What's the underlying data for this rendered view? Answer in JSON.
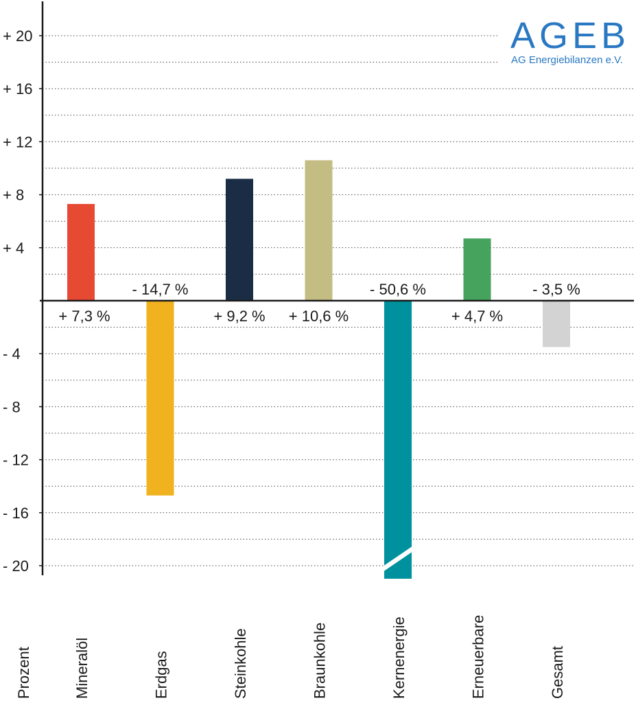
{
  "logo": {
    "title": "AGEB",
    "subtitle": "AG Energiebilanzen e.V.",
    "color": "#2a78c2"
  },
  "chart_data": {
    "type": "bar",
    "ylabel": "Prozent",
    "ylim": [
      -21,
      22
    ],
    "y_ticks": [
      20,
      16,
      12,
      8,
      4,
      -4,
      -8,
      -12,
      -16,
      -20
    ],
    "y_tick_labels": [
      "+ 20",
      "+ 16",
      "+ 12",
      "+ 8",
      "+ 4",
      "- 4",
      "- 8",
      "- 12",
      "- 16",
      "- 20"
    ],
    "grid": "dotted",
    "categories": [
      "Mineralöl",
      "Erdgas",
      "Steinkohle",
      "Braunkohle",
      "Kernenergie",
      "Erneuerbare",
      "Gesamt"
    ],
    "values": [
      7.3,
      -14.7,
      9.2,
      10.6,
      -50.6,
      4.7,
      -3.5
    ],
    "value_labels": [
      "+ 7,3 %",
      "- 14,7 %",
      "+ 9,2 %",
      "+ 10,6 %",
      "- 50,6 %",
      "+ 4,7 %",
      "- 3,5 %"
    ],
    "colors": [
      "#e64a32",
      "#f0b21e",
      "#1b2d45",
      "#c4bd83",
      "#00919e",
      "#45a35e",
      "#d3d3d3"
    ],
    "truncated": [
      false,
      false,
      false,
      false,
      true,
      false,
      false
    ]
  }
}
